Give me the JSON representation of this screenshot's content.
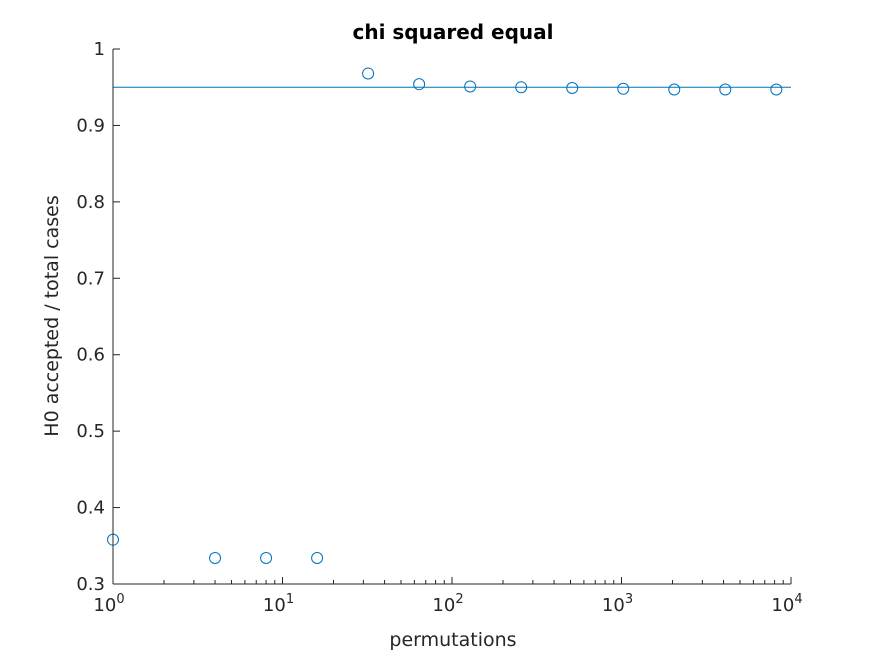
{
  "chart_data": {
    "type": "scatter",
    "title": "chi squared equal",
    "xlabel": "permutations",
    "ylabel": "H0 accepted / total cases",
    "xscale": "log",
    "xlim": [
      1,
      10000
    ],
    "ylim": [
      0.3,
      1
    ],
    "grid": false,
    "legend": "none",
    "xticks": [
      {
        "value": 1,
        "base": "10",
        "exp": "0"
      },
      {
        "value": 10,
        "base": "10",
        "exp": "1"
      },
      {
        "value": 100,
        "base": "10",
        "exp": "2"
      },
      {
        "value": 1000,
        "base": "10",
        "exp": "3"
      },
      {
        "value": 10000,
        "base": "10",
        "exp": "4"
      }
    ],
    "yticks": [
      {
        "value": 0.3,
        "label": "0.3"
      },
      {
        "value": 0.4,
        "label": "0.4"
      },
      {
        "value": 0.5,
        "label": "0.5"
      },
      {
        "value": 0.6,
        "label": "0.6"
      },
      {
        "value": 0.7,
        "label": "0.7"
      },
      {
        "value": 0.8,
        "label": "0.8"
      },
      {
        "value": 0.9,
        "label": "0.9"
      },
      {
        "value": 1.0,
        "label": "1"
      }
    ],
    "series": [
      {
        "marker": "open-circle",
        "color": "#0072BD",
        "x": [
          1,
          4,
          8,
          16,
          32,
          64,
          128,
          256,
          512,
          1024,
          2048,
          4096,
          8192
        ],
        "y": [
          0.358,
          0.334,
          0.334,
          0.334,
          0.968,
          0.954,
          0.951,
          0.95,
          0.949,
          0.948,
          0.947,
          0.947,
          0.947
        ]
      }
    ],
    "reference_line": {
      "y": 0.95,
      "color": "#0072BD"
    }
  }
}
